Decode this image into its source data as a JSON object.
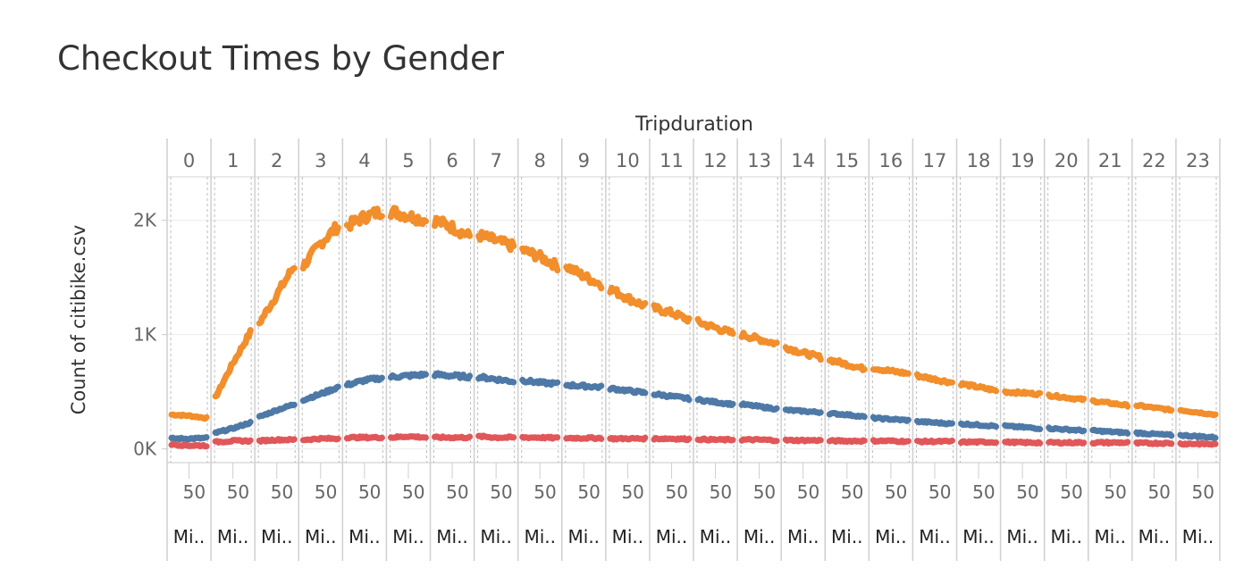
{
  "chart_data": {
    "type": "line",
    "title": "Checkout Times by Gender",
    "column_header": "Tripduration",
    "ylabel": "Count of citibike.csv",
    "x_panels": [
      "0",
      "1",
      "2",
      "3",
      "4",
      "5",
      "6",
      "7",
      "8",
      "9",
      "10",
      "11",
      "12",
      "13",
      "14",
      "15",
      "16",
      "17",
      "18",
      "19",
      "20",
      "21",
      "22",
      "23"
    ],
    "x_tick_label": "50",
    "x_sub_label": "Mi..",
    "y_ticks": [
      {
        "value": 0,
        "label": "0K"
      },
      {
        "value": 1000,
        "label": "1K"
      },
      {
        "value": 2000,
        "label": "2K"
      }
    ],
    "ylim": [
      -120,
      2380
    ],
    "grid": true,
    "series": [
      {
        "color": "#F28E2B",
        "panel_values": [
          [
            300,
            290,
            270
          ],
          [
            450,
            750,
            1020
          ],
          [
            1100,
            1350,
            1600
          ],
          [
            1600,
            1800,
            1950
          ],
          [
            1950,
            2030,
            2080
          ],
          [
            2080,
            2040,
            2000
          ],
          [
            2000,
            1940,
            1860
          ],
          [
            1870,
            1820,
            1770
          ],
          [
            1740,
            1680,
            1600
          ],
          [
            1600,
            1510,
            1440
          ],
          [
            1400,
            1320,
            1250
          ],
          [
            1230,
            1190,
            1130
          ],
          [
            1110,
            1060,
            1010
          ],
          [
            1000,
            960,
            920
          ],
          [
            890,
            840,
            800
          ],
          [
            780,
            740,
            700
          ],
          [
            710,
            680,
            660
          ],
          [
            640,
            610,
            580
          ],
          [
            570,
            540,
            510
          ],
          [
            500,
            490,
            480
          ],
          [
            470,
            450,
            430
          ],
          [
            420,
            400,
            380
          ],
          [
            380,
            360,
            340
          ],
          [
            340,
            320,
            300
          ]
        ]
      },
      {
        "color": "#4E79A7",
        "panel_values": [
          [
            90,
            90,
            95
          ],
          [
            140,
            180,
            230
          ],
          [
            280,
            340,
            390
          ],
          [
            430,
            480,
            540
          ],
          [
            560,
            600,
            620
          ],
          [
            630,
            640,
            650
          ],
          [
            650,
            640,
            630
          ],
          [
            630,
            610,
            590
          ],
          [
            600,
            580,
            570
          ],
          [
            560,
            550,
            540
          ],
          [
            530,
            510,
            490
          ],
          [
            480,
            460,
            440
          ],
          [
            430,
            410,
            390
          ],
          [
            390,
            370,
            350
          ],
          [
            340,
            330,
            320
          ],
          [
            310,
            300,
            280
          ],
          [
            270,
            260,
            250
          ],
          [
            240,
            230,
            220
          ],
          [
            220,
            210,
            200
          ],
          [
            200,
            190,
            180
          ],
          [
            180,
            170,
            160
          ],
          [
            160,
            150,
            140
          ],
          [
            140,
            130,
            120
          ],
          [
            120,
            110,
            100
          ]
        ]
      },
      {
        "color": "#E15759",
        "panel_values": [
          [
            40,
            30,
            30
          ],
          [
            60,
            70,
            70
          ],
          [
            70,
            80,
            80
          ],
          [
            80,
            90,
            90
          ],
          [
            100,
            100,
            100
          ],
          [
            100,
            110,
            100
          ],
          [
            100,
            100,
            100
          ],
          [
            110,
            100,
            100
          ],
          [
            100,
            100,
            95
          ],
          [
            95,
            95,
            95
          ],
          [
            90,
            90,
            90
          ],
          [
            90,
            90,
            85
          ],
          [
            85,
            80,
            80
          ],
          [
            80,
            80,
            75
          ],
          [
            75,
            75,
            75
          ],
          [
            70,
            70,
            70
          ],
          [
            70,
            70,
            65
          ],
          [
            65,
            65,
            65
          ],
          [
            60,
            60,
            60
          ],
          [
            60,
            55,
            55
          ],
          [
            55,
            55,
            55
          ],
          [
            55,
            55,
            55
          ],
          [
            50,
            50,
            50
          ],
          [
            45,
            45,
            40
          ]
        ]
      }
    ]
  }
}
